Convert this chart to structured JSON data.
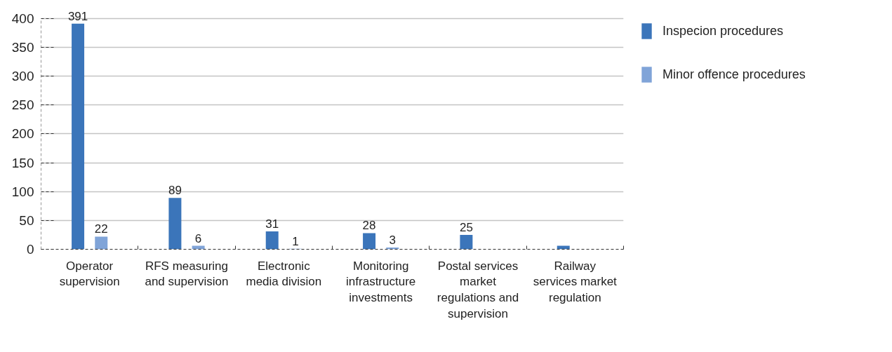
{
  "chart_data": {
    "type": "bar",
    "categories": [
      "Operator supervision",
      "RFS measuring and supervision",
      "Electronic media division",
      "Monitoring infrastructure investments",
      "Postal services market regulations and supervision",
      "Railway services market regulation"
    ],
    "series": [
      {
        "name": "Inspecion procedures",
        "color": "#3b75ba",
        "values": [
          391,
          89,
          31,
          28,
          25,
          6
        ],
        "value_labels": [
          "391",
          "89",
          "31",
          "28",
          "25",
          null
        ]
      },
      {
        "name": "Minor offence procedures",
        "color": "#80a4d8",
        "values": [
          22,
          6,
          1,
          3,
          null,
          null
        ],
        "value_labels": [
          "22",
          "6",
          "1",
          "3",
          null,
          null
        ]
      }
    ],
    "ylim": [
      0,
      400
    ],
    "yticks": [
      0,
      50,
      100,
      150,
      200,
      250,
      300,
      350,
      400
    ],
    "grid": "y",
    "legend": "top right"
  }
}
